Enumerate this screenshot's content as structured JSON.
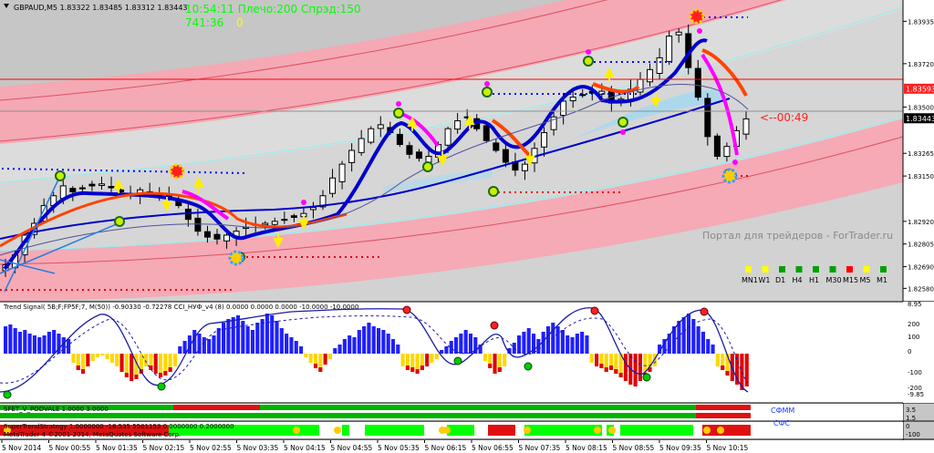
{
  "header": {
    "symbol_info": "GBPAUD,M5  1.83322 1.83485 1.83312 1.83443",
    "clock_line": "10:54:11 Плечо:200 Спрэд:150",
    "timer_a": "741:36",
    "timer_b": "0"
  },
  "countdown": "<--00:49",
  "watermark": "Портал для трейдеров - ForTrader.ru",
  "price_axis": {
    "ticks": [
      "1.83935",
      "1.83720",
      "1.83500",
      "1.83265",
      "1.83150",
      "1.82920",
      "1.82805",
      "1.82690",
      "1.82580"
    ],
    "tick_values": [
      1.83935,
      1.8372,
      1.835,
      1.83265,
      1.8315,
      1.8292,
      1.82805,
      1.8269,
      1.8258
    ],
    "current_price_label": "1.83443",
    "current_price": 1.83443,
    "red_line_label": "1.83593",
    "red_line_price": 1.83593
  },
  "timeframes": [
    "MN1",
    "W1",
    "D1",
    "H4",
    "H1",
    "M30",
    "M15",
    "M5",
    "M1"
  ],
  "timeframe_colors": [
    "#ffff00",
    "#ffff00",
    "#00a000",
    "#00a000",
    "#00a000",
    "#00a000",
    "#ff0000",
    "#ffff00",
    "#00a000"
  ],
  "indicator1": {
    "label": "Trend Signal( 5B;F;FP5F;7, M(50)) -0.90330 -0.72278  CCI_НУФ_v4 (8) 0.0000 0.0000 0.0000 -10.0000 -10.0000",
    "axis_ticks": [
      "8.95",
      "200",
      "100",
      "0",
      "-100",
      "-200",
      "-9.85"
    ]
  },
  "indicator2": {
    "label": "SFET_V_PODVALE 1.0000 3.0000",
    "legend": "СФММ",
    "axis_ticks": [
      "3.5",
      "1.5"
    ]
  },
  "indicator3": {
    "label": "SuperTrendStrategy 1.0000000 -18.535 5501153 0.0000000 0.2000000",
    "legend_cut": "СФС",
    "copyright": "MetaTrader 4 ©2001-2014, MetaQuotes Software Corp.",
    "axis_ticks": [
      "0",
      "-100"
    ]
  },
  "time_axis": [
    "5 Nov 2014",
    "5 Nov 00:55",
    "5 Nov 01:35",
    "5 Nov 02:15",
    "5 Nov 02:55",
    "5 Nov 03:35",
    "5 Nov 04:15",
    "5 Nov 04:55",
    "5 Nov 05:35",
    "5 Nov 06:15",
    "5 Nov 06:55",
    "5 Nov 07:35",
    "5 Nov 08:15",
    "5 Nov 08:55",
    "5 Nov 09:35",
    "5 Nov 10:15"
  ],
  "colors": {
    "background": "#c6c6c6",
    "pink_band": "#f7a8b4",
    "light_band": "#dcdcdc",
    "lime_text": "#00ff00",
    "yellow_text": "#ffff00",
    "ma_blue": "#0000cc",
    "ma_orange": "#ff4400",
    "ma_magenta": "#ff00ff",
    "cloud": "#a9d8ee",
    "hist_blue": "#1f1fff",
    "hist_yellow": "#ffd700",
    "hist_red": "#e00000",
    "bar_green": "#00b400",
    "bar_red": "#e01010"
  },
  "chart_data": {
    "type": "candlestick",
    "symbol": "GBPAUD",
    "timeframe": "M5",
    "last_ohlc": {
      "open": 1.83322,
      "high": 1.83485,
      "low": 1.83312,
      "close": 1.83443
    },
    "price_range": [
      1.8254,
      1.8402
    ],
    "close_path": [
      1.827,
      1.8275,
      1.8285,
      1.8291,
      1.83,
      1.8305,
      1.831,
      1.8307,
      1.8309,
      1.831,
      1.8311,
      1.8309,
      1.8307,
      1.8306,
      1.8308,
      1.8307,
      1.8305,
      1.8304,
      1.83,
      1.8293,
      1.8287,
      1.8284,
      1.8283,
      1.8285,
      1.8287,
      1.8289,
      1.829,
      1.8291,
      1.8292,
      1.8293,
      1.8294,
      1.8296,
      1.8299,
      1.8305,
      1.8314,
      1.8321,
      1.8328,
      1.8334,
      1.8339,
      1.8341,
      1.8337,
      1.8331,
      1.8326,
      1.8324,
      1.8325,
      1.8331,
      1.8339,
      1.8343,
      1.8345,
      1.8339,
      1.8333,
      1.8328,
      1.8322,
      1.8318,
      1.8321,
      1.8329,
      1.8337,
      1.8345,
      1.8353,
      1.8355,
      1.8356,
      1.8357,
      1.8358,
      1.8352,
      1.8354,
      1.8359,
      1.8364,
      1.8369,
      1.8375,
      1.8386,
      1.8388,
      1.837,
      1.8355,
      1.8335,
      1.8325,
      1.833,
      1.8338,
      1.8344
    ]
  }
}
